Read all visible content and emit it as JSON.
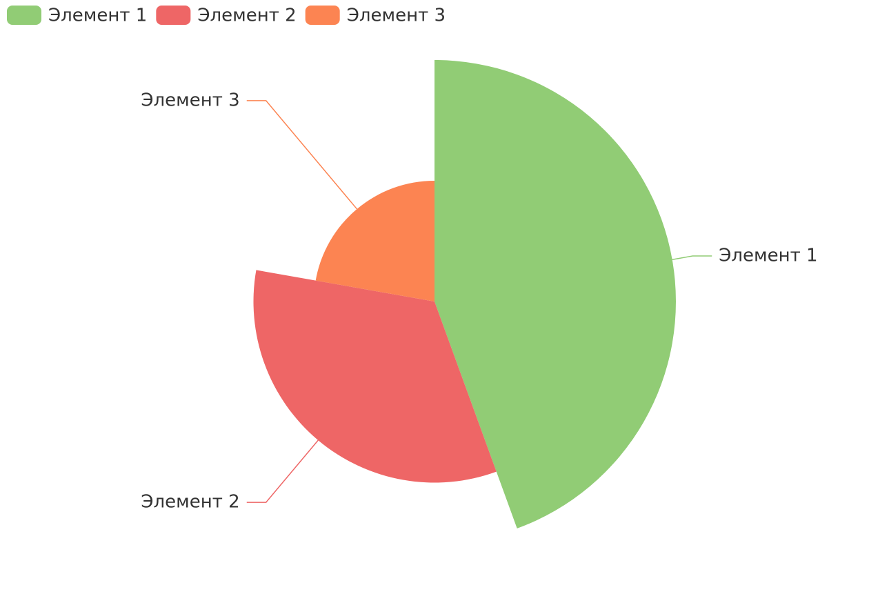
{
  "chart_data": {
    "type": "rose",
    "categories": [
      "Элемент 1",
      "Элемент 2",
      "Элемент 3"
    ],
    "values": [
      40,
      30,
      20
    ],
    "colors": [
      "#91cc75",
      "#ee6666",
      "#fc8452"
    ],
    "legend": "top-left"
  }
}
